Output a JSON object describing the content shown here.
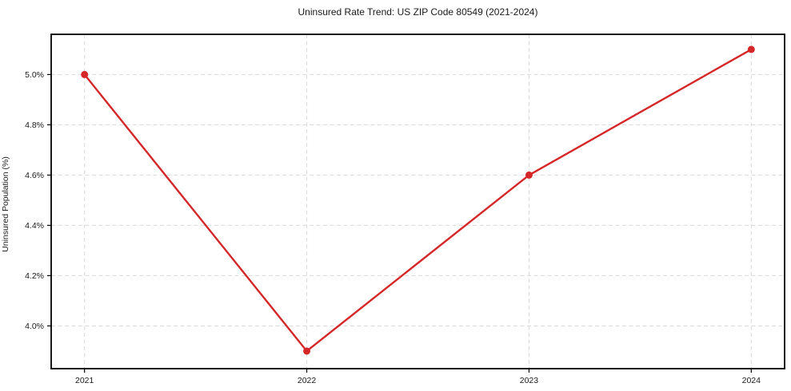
{
  "chart_data": {
    "type": "line",
    "title": "Uninsured Rate Trend: US ZIP Code 80549 (2021-2024)",
    "xlabel": "",
    "ylabel": "Uninsured Population (%)",
    "x": [
      2021,
      2022,
      2023,
      2024
    ],
    "values": [
      5.0,
      3.9,
      4.6,
      5.1
    ],
    "x_tick_labels": [
      "2021",
      "2022",
      "2023",
      "2024"
    ],
    "y_ticks": [
      4.0,
      4.2,
      4.4,
      4.6,
      4.8,
      5.0
    ],
    "y_tick_labels": [
      "4.0%",
      "4.2%",
      "4.4%",
      "4.6%",
      "4.8%",
      "5.0%"
    ],
    "xlim": [
      2020.85,
      2024.15
    ],
    "ylim": [
      3.83,
      5.16
    ],
    "grid": true,
    "grid_style": "dashed",
    "legend_position": "none",
    "colors": {
      "line": "#d62728",
      "marker": "#d62728",
      "grid": "#d9d9d9",
      "axis": "#000000",
      "text": "#1a1a1a",
      "background": "#ffffff"
    }
  }
}
